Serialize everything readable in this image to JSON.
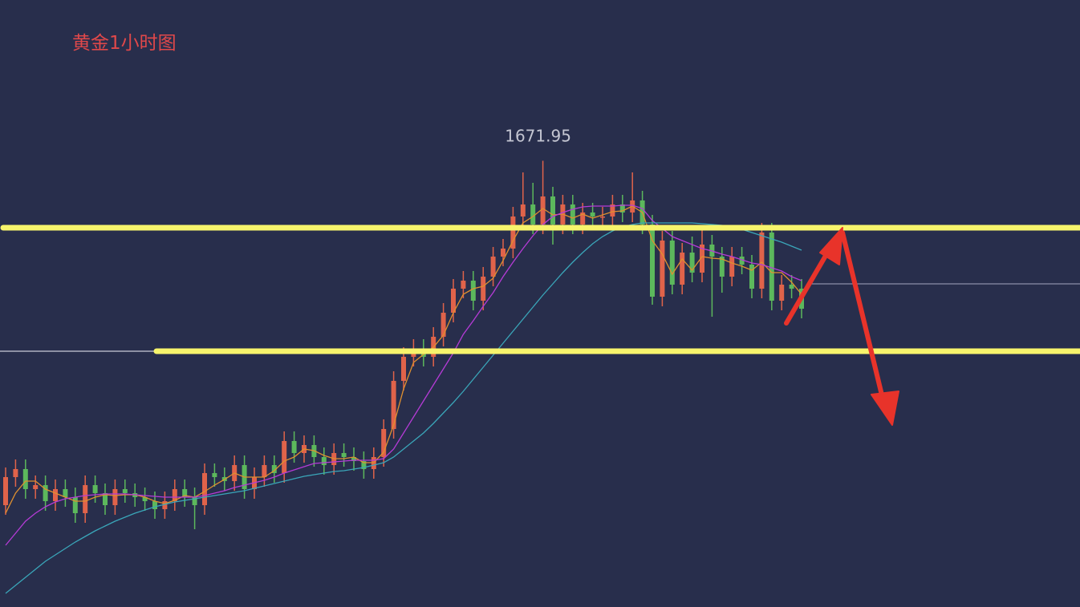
{
  "chart_data": {
    "type": "candlestick",
    "title": "黄金1小时图",
    "ylim": [
      1616.3,
      1692
    ],
    "up_color": "#e0634a",
    "down_color": "#5cb85c",
    "open": [
      1629,
      1632.5,
      1633.5,
      1631,
      1631.5,
      1629.5,
      1631,
      1630,
      1628,
      1631.5,
      1630.5,
      1629,
      1631,
      1630.5,
      1630,
      1629.5,
      1628.5,
      1629.5,
      1631,
      1630,
      1629,
      1633,
      1632.5,
      1632,
      1634,
      1631,
      1632.5,
      1634,
      1633,
      1637,
      1635.5,
      1636.5,
      1635,
      1634,
      1635.5,
      1635,
      1634.5,
      1633.5,
      1635,
      1638.5,
      1644.5,
      1647.5,
      1648.5,
      1647.5,
      1650,
      1653,
      1656,
      1657,
      1654.5,
      1657.5,
      1660,
      1661,
      1665,
      1666.5,
      1664,
      1667.5,
      1664,
      1666.5,
      1664,
      1665.5,
      1665,
      1665,
      1666.5,
      1665.5,
      1667,
      1664,
      1655,
      1662,
      1656.5,
      1660.5,
      1658,
      1661.5,
      1660,
      1657.5,
      1660,
      1659,
      1656,
      1663,
      1654.5,
      1656.5,
      1656
    ],
    "high": [
      1633.7,
      1634.7,
      1634.7,
      1632.7,
      1632.7,
      1632.2,
      1632.2,
      1631.2,
      1632.7,
      1632.7,
      1631.7,
      1632.2,
      1632.2,
      1631.7,
      1631.2,
      1630.7,
      1630.7,
      1632.2,
      1632.2,
      1631.2,
      1634.2,
      1634.2,
      1633.7,
      1635.2,
      1635.2,
      1633.7,
      1635.2,
      1635.2,
      1638.2,
      1638.2,
      1637.7,
      1637.7,
      1636.2,
      1636.7,
      1636.7,
      1636.2,
      1635.7,
      1636.2,
      1639.7,
      1645.7,
      1648.7,
      1649.7,
      1649.7,
      1651.2,
      1654.2,
      1657.2,
      1658.2,
      1658.2,
      1658.7,
      1661.2,
      1662.2,
      1666.2,
      1670.5,
      1669.2,
      1671.95,
      1668.7,
      1667.7,
      1667.7,
      1666.7,
      1666.7,
      1666.2,
      1667.7,
      1667.7,
      1670.5,
      1668.2,
      1665.2,
      1663.2,
      1663.2,
      1661.7,
      1662.5,
      1663.5,
      1662.7,
      1661.2,
      1661.2,
      1661.2,
      1660.2,
      1664.2,
      1664.2,
      1657.7,
      1657.7,
      1657.2
    ],
    "low": [
      1627.8,
      1631.3,
      1629.8,
      1629.8,
      1628.3,
      1628.3,
      1628.8,
      1626.8,
      1626.8,
      1629.3,
      1627.8,
      1627.8,
      1629.3,
      1628.8,
      1628.3,
      1627.3,
      1627.3,
      1628.3,
      1628.8,
      1626,
      1627.8,
      1631.3,
      1630.8,
      1630.8,
      1629.8,
      1629.8,
      1631.3,
      1631.8,
      1631.8,
      1634.3,
      1634.3,
      1633.8,
      1632.8,
      1632.8,
      1633.8,
      1633.3,
      1632.3,
      1632.3,
      1633.8,
      1637.3,
      1643.3,
      1646.3,
      1646.3,
      1646.3,
      1648.8,
      1651.8,
      1654.8,
      1653.3,
      1653.3,
      1656.3,
      1658.8,
      1659.8,
      1663.8,
      1662.8,
      1662.8,
      1661.5,
      1662.8,
      1662.8,
      1662.8,
      1663.8,
      1663.8,
      1663.8,
      1664.3,
      1664.3,
      1662.8,
      1654,
      1653.8,
      1655.3,
      1655.3,
      1656.8,
      1656.8,
      1652.5,
      1655.5,
      1656.3,
      1657.8,
      1654.8,
      1654.8,
      1653.3,
      1653.3,
      1654.8,
      1652.3
    ],
    "close": [
      1632.5,
      1633.5,
      1631,
      1631.5,
      1629.5,
      1631,
      1630,
      1628,
      1631.5,
      1630.5,
      1629,
      1631,
      1630.5,
      1630,
      1629.5,
      1628.5,
      1629.5,
      1631,
      1630,
      1629,
      1633,
      1632.5,
      1632,
      1634,
      1631,
      1632.5,
      1634,
      1633,
      1637,
      1635.5,
      1636.5,
      1635,
      1634,
      1635.5,
      1635,
      1634.5,
      1633.5,
      1635,
      1638.5,
      1644.5,
      1647.5,
      1648.5,
      1647.5,
      1650,
      1653,
      1656,
      1657,
      1654.5,
      1657.5,
      1660,
      1661,
      1665,
      1666.5,
      1664,
      1667.5,
      1664,
      1666.5,
      1664,
      1665.5,
      1665,
      1665,
      1666.5,
      1665.5,
      1667,
      1664,
      1655,
      1662,
      1656.5,
      1660.5,
      1658,
      1661.5,
      1660,
      1657.5,
      1660,
      1659,
      1656,
      1663,
      1654.5,
      1656.5,
      1656,
      1653.5
    ],
    "series": [
      {
        "color": "#e0902f",
        "values": [
          1628,
          1630.5,
          1632,
          1632,
          1631,
          1630.5,
          1630,
          1629.5,
          1629.5,
          1630,
          1630.3,
          1630.2,
          1630.3,
          1630.3,
          1630,
          1629.5,
          1629.2,
          1629.6,
          1630.2,
          1630,
          1630.7,
          1631.5,
          1632.2,
          1633,
          1632.5,
          1632.5,
          1632.5,
          1633.3,
          1634.5,
          1635,
          1636,
          1635.8,
          1635.2,
          1634.8,
          1634.8,
          1635,
          1634.3,
          1634.3,
          1635.6,
          1639,
          1643.5,
          1646.8,
          1647.8,
          1648.7,
          1650.2,
          1653,
          1655.3,
          1656,
          1656.3,
          1657.3,
          1659.5,
          1662,
          1664.2,
          1665,
          1666,
          1665.2,
          1665.3,
          1664.8,
          1665.3,
          1664.8,
          1665.2,
          1665.6,
          1665.7,
          1666.3,
          1665.5,
          1662,
          1660.3,
          1657.8,
          1659.7,
          1658.3,
          1660,
          1659.8,
          1659.7,
          1659.2,
          1658.8,
          1658.3,
          1659.3,
          1658,
          1658,
          1656.8,
          1655.3
        ]
      },
      {
        "color": "#b53bd6",
        "values": [
          1624,
          1625.5,
          1627,
          1628,
          1628.8,
          1629.4,
          1629.8,
          1630,
          1630.2,
          1630.3,
          1630.4,
          1630.4,
          1630.4,
          1630.3,
          1630.2,
          1630.1,
          1630,
          1630,
          1630,
          1630,
          1630.2,
          1630.5,
          1630.8,
          1631.2,
          1631.5,
          1631.8,
          1632.1,
          1632.5,
          1633,
          1633.4,
          1633.8,
          1634.2,
          1634.3,
          1634.4,
          1634.5,
          1634.6,
          1634.6,
          1634.6,
          1634.8,
          1636,
          1638,
          1640,
          1642,
          1644,
          1646,
          1648,
          1650.3,
          1652,
          1653.8,
          1655.5,
          1657.5,
          1659.3,
          1661,
          1662.6,
          1664,
          1665,
          1665.5,
          1665.9,
          1666.2,
          1666.3,
          1666.3,
          1666.3,
          1666.4,
          1666.4,
          1666,
          1664.5,
          1663.5,
          1662.5,
          1662,
          1661.5,
          1661,
          1660.7,
          1660.3,
          1660,
          1659.6,
          1659.2,
          1659,
          1658.6,
          1658.2,
          1657.5,
          1657
        ]
      },
      {
        "color": "#3aa6b9",
        "values": [
          1618,
          1619,
          1620,
          1621,
          1622,
          1622.8,
          1623.6,
          1624.4,
          1625.1,
          1625.8,
          1626.4,
          1627,
          1627.5,
          1628,
          1628.4,
          1628.8,
          1629.1,
          1629.4,
          1629.6,
          1629.8,
          1630,
          1630.2,
          1630.4,
          1630.6,
          1630.8,
          1631.1,
          1631.4,
          1631.7,
          1632,
          1632.3,
          1632.6,
          1632.8,
          1633,
          1633.2,
          1633.3,
          1633.5,
          1633.7,
          1634,
          1634.3,
          1635,
          1636,
          1637,
          1638,
          1639.2,
          1640.5,
          1641.8,
          1643.2,
          1644.7,
          1646.2,
          1647.7,
          1649.2,
          1650.7,
          1652.2,
          1653.7,
          1655.2,
          1656.6,
          1658,
          1659.3,
          1660.5,
          1661.6,
          1662.5,
          1663.2,
          1663.7,
          1664,
          1664.2,
          1664.2,
          1664.2,
          1664.2,
          1664.2,
          1664.2,
          1664.1,
          1664,
          1663.9,
          1663.7,
          1663.4,
          1663,
          1662.6,
          1662.2,
          1661.8,
          1661.3,
          1660.8
        ]
      }
    ],
    "hlines": [
      {
        "value": 1663.6,
        "color": "#f7f46c"
      },
      {
        "value": 1648.2,
        "color": "#f7f46c"
      }
    ],
    "price_lines": [
      {
        "value": 1656.6,
        "color": "#8a8fa8"
      },
      {
        "value": 1648.2,
        "color": "#c9ccd8"
      }
    ]
  }
}
